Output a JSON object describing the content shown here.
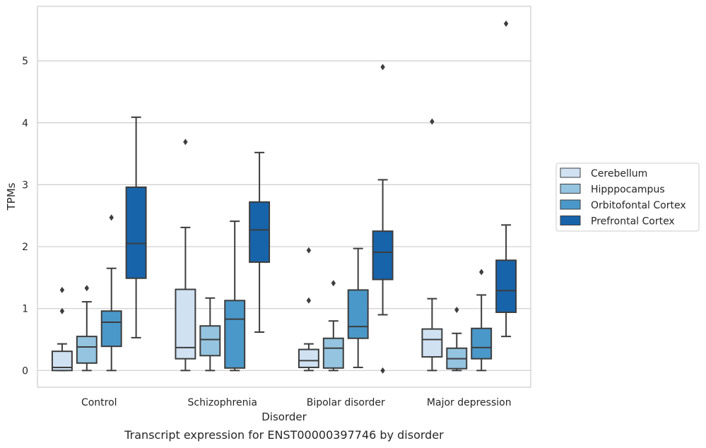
{
  "caption": "Transcript expression for ENST00000397746 by disorder",
  "chart_data": {
    "type": "box",
    "xlabel": "Disorder",
    "ylabel": "TPMs",
    "ylim": [
      -0.27,
      5.88
    ],
    "yticks": [
      "0",
      "1",
      "2",
      "3",
      "4",
      "5"
    ],
    "grid": "horizontal",
    "legend_position": "right",
    "categories": [
      "Control",
      "Schizophrenia",
      "Bipolar disorder",
      "Major depression"
    ],
    "series": [
      {
        "name": "Cerebellum",
        "color": "#d0e1f2",
        "boxes": [
          {
            "whisker_low": 0.0,
            "q1": 0.0,
            "median": 0.05,
            "q3": 0.31,
            "whisker_high": 0.43,
            "outliers": [
              0.96,
              1.3
            ]
          },
          {
            "whisker_low": 0.0,
            "q1": 0.19,
            "median": 0.37,
            "q3": 1.31,
            "whisker_high": 2.31,
            "outliers": [
              3.69
            ]
          },
          {
            "whisker_low": 0.0,
            "q1": 0.05,
            "median": 0.16,
            "q3": 0.34,
            "whisker_high": 0.43,
            "outliers": [
              1.13,
              1.94
            ]
          },
          {
            "whisker_low": 0.0,
            "q1": 0.22,
            "median": 0.5,
            "q3": 0.67,
            "whisker_high": 1.16,
            "outliers": [
              4.02
            ]
          }
        ]
      },
      {
        "name": "Hipppocampus",
        "color": "#94c4df",
        "boxes": [
          {
            "whisker_low": 0.0,
            "q1": 0.12,
            "median": 0.38,
            "q3": 0.55,
            "whisker_high": 1.11,
            "outliers": [
              1.33
            ]
          },
          {
            "whisker_low": 0.0,
            "q1": 0.24,
            "median": 0.5,
            "q3": 0.72,
            "whisker_high": 1.17,
            "outliers": []
          },
          {
            "whisker_low": 0.0,
            "q1": 0.04,
            "median": 0.36,
            "q3": 0.52,
            "whisker_high": 0.8,
            "outliers": [
              1.41
            ]
          },
          {
            "whisker_low": 0.0,
            "q1": 0.03,
            "median": 0.19,
            "q3": 0.36,
            "whisker_high": 0.6,
            "outliers": [
              0.98
            ]
          }
        ]
      },
      {
        "name": "Orbitofontal Cortex",
        "color": "#4a98c9",
        "boxes": [
          {
            "whisker_low": 0.0,
            "q1": 0.39,
            "median": 0.78,
            "q3": 0.96,
            "whisker_high": 1.65,
            "outliers": [
              2.47
            ]
          },
          {
            "whisker_low": 0.0,
            "q1": 0.04,
            "median": 0.83,
            "q3": 1.13,
            "whisker_high": 2.41,
            "outliers": []
          },
          {
            "whisker_low": 0.05,
            "q1": 0.52,
            "median": 0.71,
            "q3": 1.3,
            "whisker_high": 1.97,
            "outliers": []
          },
          {
            "whisker_low": 0.0,
            "q1": 0.19,
            "median": 0.37,
            "q3": 0.68,
            "whisker_high": 1.22,
            "outliers": [
              1.59
            ]
          }
        ]
      },
      {
        "name": "Prefrontal Cortex",
        "color": "#1764ab",
        "boxes": [
          {
            "whisker_low": 0.53,
            "q1": 1.49,
            "median": 2.05,
            "q3": 2.96,
            "whisker_high": 4.09,
            "outliers": []
          },
          {
            "whisker_low": 0.62,
            "q1": 1.75,
            "median": 2.27,
            "q3": 2.72,
            "whisker_high": 3.52,
            "outliers": []
          },
          {
            "whisker_low": 0.9,
            "q1": 1.47,
            "median": 1.91,
            "q3": 2.25,
            "whisker_high": 3.08,
            "outliers": [
              0.0,
              4.9
            ]
          },
          {
            "whisker_low": 0.55,
            "q1": 0.94,
            "median": 1.29,
            "q3": 1.78,
            "whisker_high": 2.35,
            "outliers": [
              5.6
            ]
          }
        ]
      }
    ]
  }
}
